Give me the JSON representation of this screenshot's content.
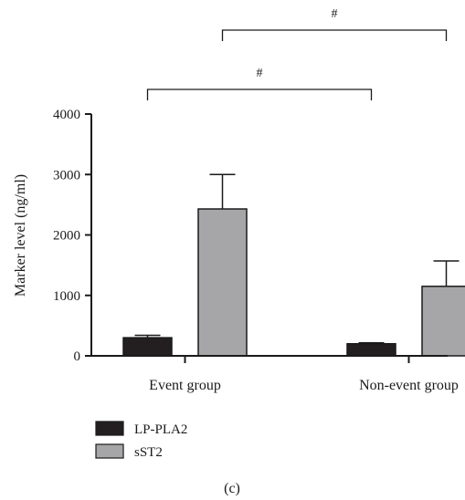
{
  "chart_data": {
    "type": "bar",
    "categories": [
      "Event group",
      "Non-event group"
    ],
    "series": [
      {
        "name": "LP-PLA2",
        "color": "#231f20",
        "values": [
          300,
          200
        ],
        "errors": [
          40,
          15
        ]
      },
      {
        "name": "sST2",
        "color": "#a6a6a8",
        "values": [
          2430,
          1150
        ],
        "errors": [
          570,
          420
        ]
      }
    ],
    "xlabel": "",
    "ylabel": "Marker level (ng/ml)",
    "ylim": [
      0,
      4000
    ],
    "yticks": [
      0,
      1000,
      2000,
      3000,
      4000
    ],
    "legend_position": "bottom-left",
    "grid": false,
    "annotations": [
      {
        "label": "#",
        "from": {
          "category": 0,
          "series": 0
        },
        "to": {
          "category": 1,
          "series": 0
        },
        "level": 1
      },
      {
        "label": "#",
        "from": {
          "category": 0,
          "series": 1
        },
        "to": {
          "category": 1,
          "series": 1
        },
        "level": 2
      }
    ],
    "panel_label": "(c)"
  }
}
